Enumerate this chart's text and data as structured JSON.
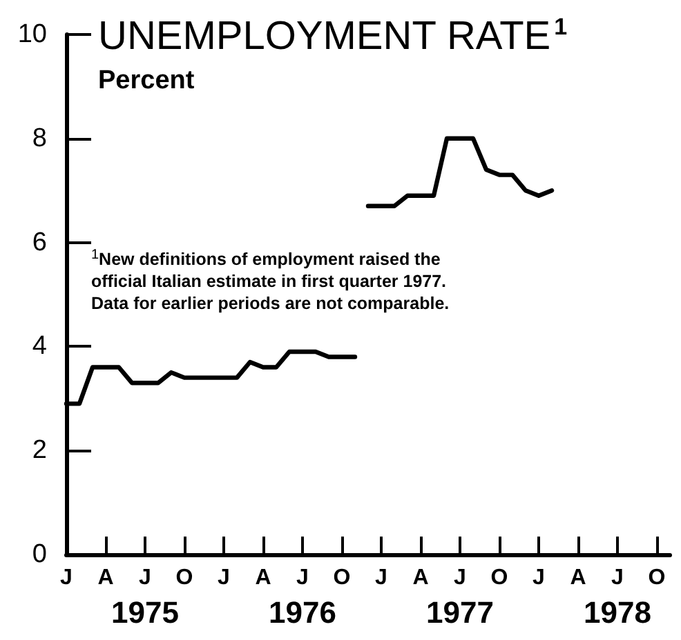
{
  "chart_data": {
    "type": "line",
    "title": "UNEMPLOYMENT RATE$^{1}$",
    "subtitle": "Percent",
    "annotations": [
      "$^{1}$New definitions of employment raised the\nofficial Italian estimate in first quarter 1977.\nData for earlier periods are not comparable."
    ],
    "series": [
      {
        "color": "#000000",
        "x": [
          "1975-01",
          "1975-02",
          "1975-03",
          "1975-04",
          "1975-05",
          "1975-06",
          "1975-07",
          "1975-08",
          "1975-09",
          "1975-10",
          "1975-11",
          "1975-12",
          "1976-01",
          "1976-02",
          "1976-03",
          "1976-04",
          "1976-05",
          "1976-06",
          "1976-07",
          "1976-08",
          "1976-09",
          "1976-10",
          "1976-11"
        ],
        "values": [
          2.9,
          2.9,
          3.6,
          3.6,
          3.6,
          3.3,
          3.3,
          3.3,
          3.5,
          3.4,
          3.4,
          3.4,
          3.4,
          3.4,
          3.7,
          3.6,
          3.6,
          3.9,
          3.9,
          3.9,
          3.8,
          3.8,
          3.8
        ]
      },
      {
        "color": "#000000",
        "x": [
          "1976-12",
          "1977-01",
          "1977-02",
          "1977-03",
          "1977-04",
          "1977-05",
          "1977-06",
          "1977-07",
          "1977-08",
          "1977-09",
          "1977-10",
          "1977-11",
          "1977-12",
          "1978-01",
          "1978-02"
        ],
        "values": [
          6.7,
          6.7,
          6.7,
          6.9,
          6.9,
          6.9,
          8.0,
          8.0,
          8.0,
          7.4,
          7.3,
          7.3,
          7.0,
          6.9,
          7.0
        ]
      }
    ],
    "xlim": [
      "1975-01",
      "1978-11"
    ],
    "xticks": [
      {
        "value": "1975-01",
        "label": "J"
      },
      {
        "value": "1975-04",
        "label": "A"
      },
      {
        "value": "1975-07",
        "label": "J\n1975"
      },
      {
        "value": "1975-10",
        "label": "O"
      },
      {
        "value": "1976-01",
        "label": "J"
      },
      {
        "value": "1976-04",
        "label": "A"
      },
      {
        "value": "1976-07",
        "label": "J\n1976"
      },
      {
        "value": "1976-10",
        "label": "O"
      },
      {
        "value": "1977-01",
        "label": "J"
      },
      {
        "value": "1977-04",
        "label": "A"
      },
      {
        "value": "1977-07",
        "label": "J\n1977"
      },
      {
        "value": "1977-10",
        "label": "O"
      },
      {
        "value": "1978-01",
        "label": "J"
      },
      {
        "value": "1978-04",
        "label": "A"
      },
      {
        "value": "1978-07",
        "label": "J\n1978"
      },
      {
        "value": "1978-10",
        "label": "O"
      }
    ],
    "ylim": [
      0,
      10
    ],
    "yticks": [
      0,
      2,
      4,
      6,
      8,
      10
    ],
    "grid": false,
    "marker": "none",
    "line_style": "solid"
  }
}
